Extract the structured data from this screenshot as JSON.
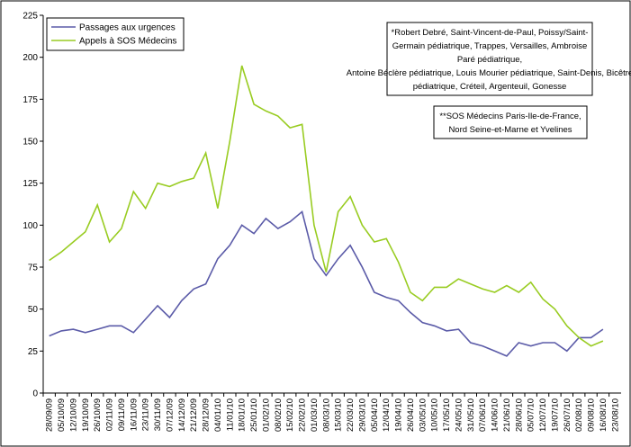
{
  "chart_data": {
    "type": "line",
    "categories": [
      "28/09/09",
      "05/10/09",
      "12/10/09",
      "19/10/09",
      "26/10/09",
      "02/11/09",
      "09/11/09",
      "16/11/09",
      "23/11/09",
      "30/11/09",
      "07/12/09",
      "14/12/09",
      "21/12/09",
      "28/12/09",
      "04/01/10",
      "11/01/10",
      "18/01/10",
      "25/01/10",
      "01/02/10",
      "08/02/10",
      "15/02/10",
      "22/02/10",
      "01/03/10",
      "08/03/10",
      "15/03/10",
      "22/03/10",
      "29/03/10",
      "05/04/10",
      "12/04/10",
      "19/04/10",
      "26/04/10",
      "03/05/10",
      "10/05/10",
      "17/05/10",
      "24/05/10",
      "31/05/10",
      "07/06/10",
      "14/06/10",
      "21/06/10",
      "28/06/10",
      "05/07/10",
      "12/07/10",
      "19/07/10",
      "26/07/10",
      "02/08/10",
      "09/08/10",
      "16/08/10",
      "23/08/10"
    ],
    "series": [
      {
        "name": "Passages aux urgences",
        "color": "#5b5ba8",
        "values": [
          34,
          37,
          38,
          36,
          38,
          40,
          40,
          36,
          44,
          52,
          45,
          55,
          62,
          65,
          80,
          88,
          100,
          95,
          104,
          98,
          102,
          108,
          80,
          70,
          80,
          88,
          75,
          60,
          57,
          55,
          48,
          42,
          40,
          37,
          38,
          30,
          28,
          25,
          22,
          30,
          28,
          30,
          30,
          25,
          33,
          33,
          38,
          null
        ]
      },
      {
        "name": "Appels à SOS Médecins",
        "color": "#99cc22",
        "values": [
          79,
          84,
          90,
          96,
          112,
          90,
          98,
          120,
          110,
          125,
          123,
          126,
          128,
          143,
          110,
          150,
          195,
          172,
          168,
          165,
          158,
          160,
          100,
          72,
          108,
          117,
          100,
          90,
          92,
          78,
          60,
          55,
          63,
          63,
          68,
          65,
          62,
          60,
          64,
          60,
          66,
          56,
          50,
          40,
          33,
          28,
          31,
          null
        ]
      }
    ],
    "ylim": [
      0,
      225
    ],
    "yticks": [
      0,
      25,
      50,
      75,
      100,
      125,
      150,
      175,
      200,
      225
    ],
    "annotations": [
      "*Robert Debré, Saint-Vincent-de-Paul, Poissy/Saint-Germain pédiatrique, Trappes, Versailles, Ambroise Paré pédiatrique, Antoine Béclère pédiatrique, Louis Mourier pédiatrique, Saint-Denis, Bicêtre pédiatrique, Créteil, Argenteuil, Gonesse",
      "**SOS Médecins Paris-Ile-de-France, Nord Seine-et-Marne et Yvelines"
    ]
  }
}
